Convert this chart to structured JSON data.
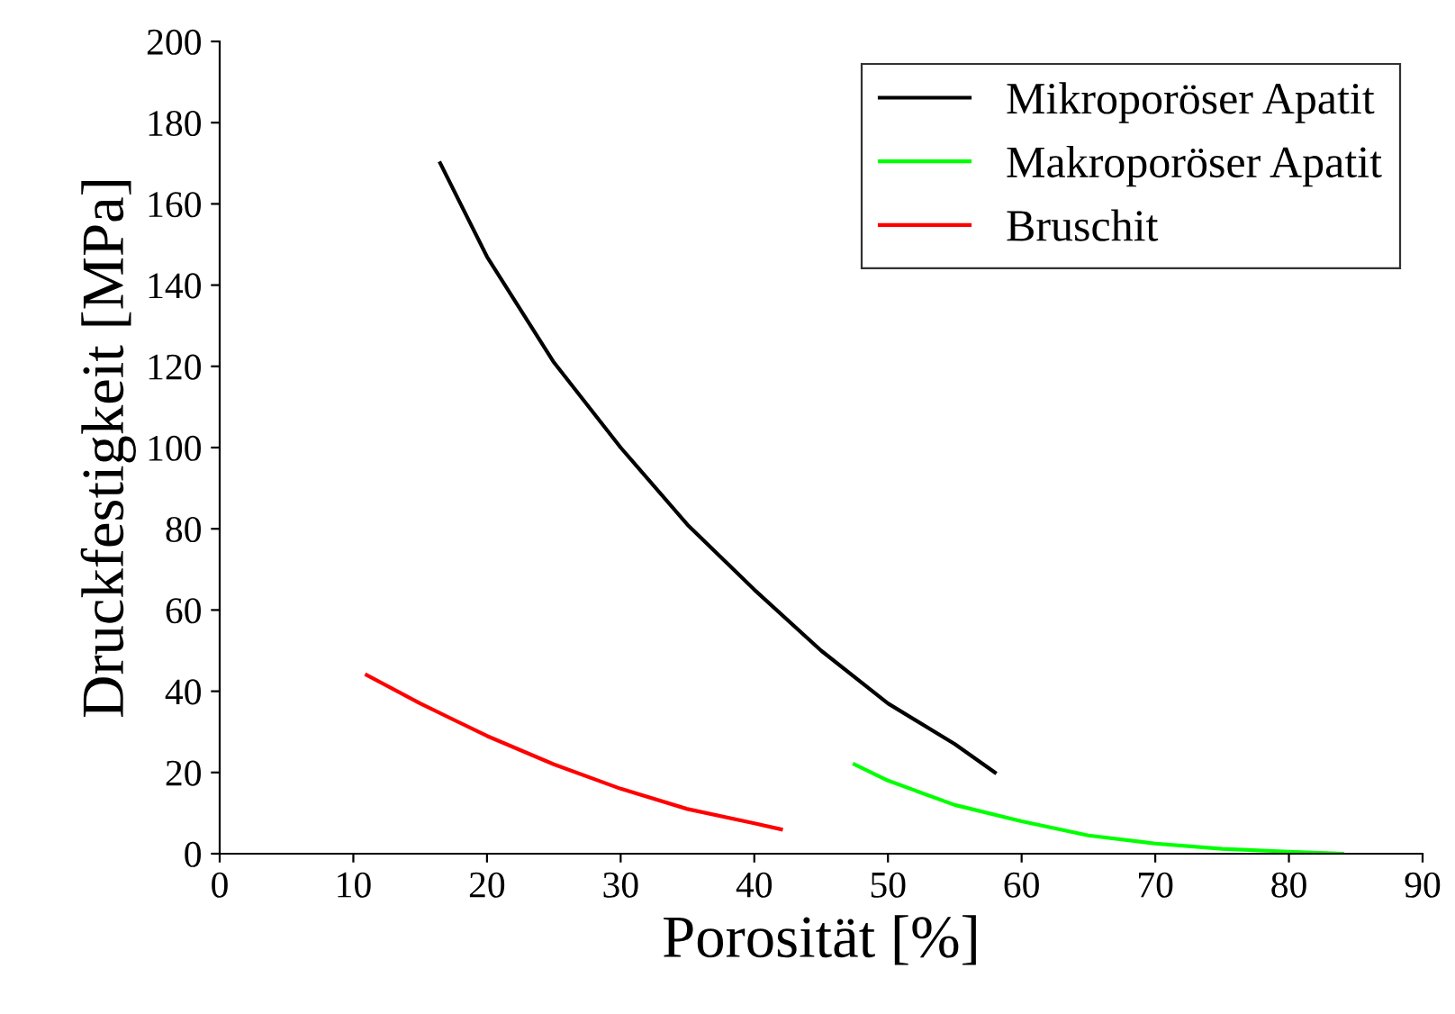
{
  "chart_data": {
    "type": "line",
    "xlabel": "Porosität [%]",
    "ylabel": "Druckfestigkeit [MPa]",
    "xlim": [
      0,
      90
    ],
    "ylim": [
      0,
      200
    ],
    "xticks": [
      0,
      10,
      20,
      30,
      40,
      50,
      60,
      70,
      80,
      90
    ],
    "yticks": [
      0,
      20,
      40,
      60,
      80,
      100,
      120,
      140,
      160,
      180,
      200
    ],
    "grid": false,
    "legend": "top right",
    "marker": "none",
    "line_style": "solid",
    "series": [
      {
        "name": "Mikroporöser Apatit",
        "color": "#000000",
        "x": [
          16.5,
          20,
          25,
          30,
          35,
          40,
          45,
          50,
          55,
          58
        ],
        "values": [
          170,
          147,
          121,
          100,
          81,
          65,
          50,
          37,
          27,
          20
        ]
      },
      {
        "name": "Makroporöser Apatit",
        "color": "#00ff00",
        "x": [
          47.5,
          50,
          55,
          60,
          65,
          70,
          75,
          80,
          84
        ],
        "values": [
          22,
          18,
          12,
          8,
          4.5,
          2.5,
          1.2,
          0.5,
          0
        ]
      },
      {
        "name": "Bruschit",
        "color": "#ff0000",
        "x": [
          11,
          15,
          20,
          25,
          30,
          35,
          40,
          42
        ],
        "values": [
          44,
          37,
          29,
          22,
          16,
          11,
          7.5,
          6
        ]
      }
    ]
  }
}
